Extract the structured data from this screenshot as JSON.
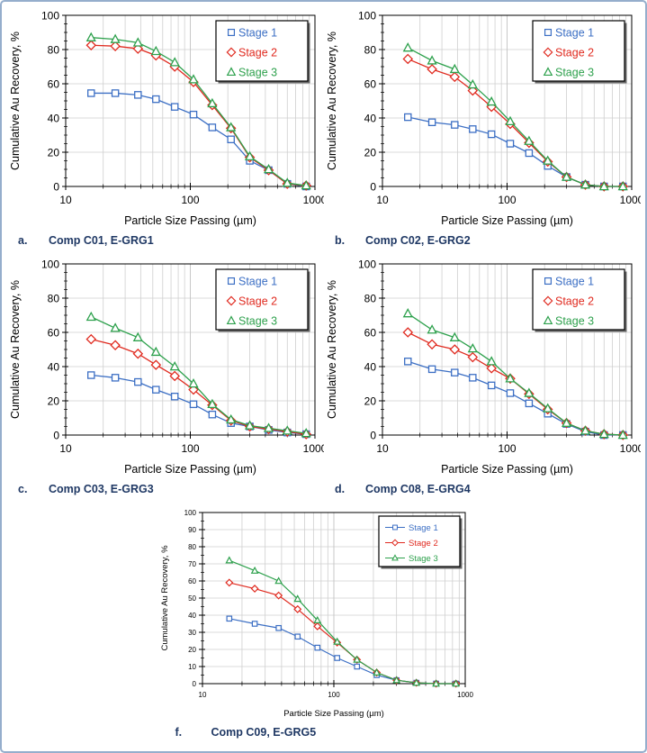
{
  "page": {
    "border_color": "#95AECC",
    "background": "#ffffff"
  },
  "chart_data": [
    {
      "id": "a",
      "caption_letter": "a.",
      "caption_title": "Comp C01, E-GRG1",
      "type": "line",
      "x_scale": "log",
      "xlabel": "Particle Size Passing (µm)",
      "ylabel": "Cumulative Au Recovery, %",
      "xlim": [
        10,
        1000
      ],
      "ylim": [
        0,
        100
      ],
      "x_ticks": [
        10,
        100,
        1000
      ],
      "y_ticks": [
        0,
        20,
        40,
        60,
        80,
        100
      ],
      "y_minor": 5,
      "grid": true,
      "legend_position": "top-right",
      "compact": false,
      "x": [
        16,
        25,
        38,
        53,
        75,
        106,
        150,
        212,
        300,
        425,
        600,
        850
      ],
      "series": [
        {
          "name": "Stage 1",
          "color": "#3C6FC4",
          "marker": "square",
          "values": [
            54.5,
            54.5,
            53.5,
            51,
            46.5,
            42,
            34.5,
            27.5,
            15,
            9.5,
            1.5,
            0
          ]
        },
        {
          "name": "Stage 2",
          "color": "#E02B20",
          "marker": "diamond",
          "values": [
            82.5,
            82,
            80.5,
            76.5,
            70,
            61,
            47.5,
            34,
            17,
            9.5,
            1.5,
            0.5
          ]
        },
        {
          "name": "Stage 3",
          "color": "#2EA14D",
          "marker": "triangle",
          "values": [
            87,
            86,
            84,
            79,
            72.5,
            62.5,
            48.5,
            34.5,
            17.5,
            10,
            2,
            0.5
          ]
        }
      ]
    },
    {
      "id": "b",
      "caption_letter": "b.",
      "caption_title": "Comp C02, E-GRG2",
      "type": "line",
      "x_scale": "log",
      "xlabel": "Particle Size Passing (µm)",
      "ylabel": "Cumulative Au Recovery, %",
      "xlim": [
        10,
        1000
      ],
      "ylim": [
        0,
        100
      ],
      "x_ticks": [
        10,
        100,
        1000
      ],
      "y_ticks": [
        0,
        20,
        40,
        60,
        80,
        100
      ],
      "y_minor": 5,
      "grid": true,
      "legend_position": "top-right",
      "compact": false,
      "x": [
        16,
        25,
        38,
        53,
        75,
        106,
        150,
        212,
        300,
        425,
        600,
        850
      ],
      "series": [
        {
          "name": "Stage 1",
          "color": "#3C6FC4",
          "marker": "square",
          "values": [
            40.5,
            37.5,
            36,
            33.5,
            30.5,
            25,
            19.5,
            12,
            5.5,
            1,
            0,
            0
          ]
        },
        {
          "name": "Stage 2",
          "color": "#E02B20",
          "marker": "diamond",
          "values": [
            74.5,
            68.5,
            64,
            56,
            46.5,
            36.5,
            25.5,
            14.5,
            5.5,
            1,
            0,
            0
          ]
        },
        {
          "name": "Stage 3",
          "color": "#2EA14D",
          "marker": "triangle",
          "values": [
            81,
            73.5,
            68.5,
            59.5,
            49.5,
            38,
            26.5,
            15,
            5.5,
            1,
            0,
            0
          ]
        }
      ]
    },
    {
      "id": "c",
      "caption_letter": "c.",
      "caption_title": "Comp C03, E-GRG3",
      "type": "line",
      "x_scale": "log",
      "xlabel": "Particle Size Passing (µm)",
      "ylabel": "Cumulative Au Recovery, %",
      "xlim": [
        10,
        1000
      ],
      "ylim": [
        0,
        100
      ],
      "x_ticks": [
        10,
        100,
        1000
      ],
      "y_ticks": [
        0,
        20,
        40,
        60,
        80,
        100
      ],
      "y_minor": 5,
      "grid": true,
      "legend_position": "top-right",
      "compact": false,
      "x": [
        16,
        25,
        38,
        53,
        75,
        106,
        150,
        212,
        300,
        425,
        600,
        850
      ],
      "series": [
        {
          "name": "Stage 1",
          "color": "#3C6FC4",
          "marker": "square",
          "values": [
            35,
            33.5,
            31,
            26.5,
            22.5,
            18,
            12,
            7,
            5,
            3,
            1.5,
            0.5
          ]
        },
        {
          "name": "Stage 2",
          "color": "#E02B20",
          "marker": "diamond",
          "values": [
            56,
            52.5,
            47.5,
            41,
            34.5,
            26.5,
            17.5,
            8.5,
            5,
            3.5,
            2,
            0.5
          ]
        },
        {
          "name": "Stage 3",
          "color": "#2EA14D",
          "marker": "triangle",
          "values": [
            69,
            62.5,
            57,
            48.5,
            40,
            30,
            18,
            9,
            5.5,
            4,
            2.5,
            1
          ]
        }
      ]
    },
    {
      "id": "d",
      "caption_letter": "d.",
      "caption_title": "Comp C08, E-GRG4",
      "type": "line",
      "x_scale": "log",
      "xlabel": "Particle Size Passing (µm)",
      "ylabel": "Cumulative Au Recovery, %",
      "xlim": [
        10,
        1000
      ],
      "ylim": [
        0,
        100
      ],
      "x_ticks": [
        10,
        100,
        1000
      ],
      "y_ticks": [
        0,
        20,
        40,
        60,
        80,
        100
      ],
      "y_minor": 5,
      "grid": true,
      "legend_position": "top-right",
      "compact": false,
      "x": [
        16,
        25,
        38,
        53,
        75,
        106,
        150,
        212,
        300,
        425,
        600,
        850
      ],
      "series": [
        {
          "name": "Stage 1",
          "color": "#3C6FC4",
          "marker": "square",
          "values": [
            43,
            38.5,
            36.5,
            33.5,
            29,
            24.5,
            18.5,
            12.5,
            6.5,
            2,
            0,
            0
          ]
        },
        {
          "name": "Stage 2",
          "color": "#E02B20",
          "marker": "diamond",
          "values": [
            60,
            53,
            50,
            45.5,
            39,
            33,
            24,
            15,
            7,
            2.5,
            0.5,
            0
          ]
        },
        {
          "name": "Stage 3",
          "color": "#2EA14D",
          "marker": "triangle",
          "values": [
            71,
            61.5,
            57,
            50.5,
            43,
            33,
            24.5,
            15.5,
            7,
            2.5,
            0.5,
            0
          ]
        }
      ]
    },
    {
      "id": "f",
      "caption_letter": "f.",
      "caption_title": "Comp C09, E-GRG5",
      "type": "line",
      "x_scale": "log",
      "xlabel": "Particle Size Passing (µm)",
      "ylabel": "Cumulative Au Recovery, %",
      "xlim": [
        10,
        1000
      ],
      "ylim": [
        0,
        100
      ],
      "x_ticks": [
        10,
        100,
        1000
      ],
      "y_ticks": [
        0,
        10,
        20,
        30,
        40,
        50,
        60,
        70,
        80,
        90,
        100
      ],
      "y_minor": 5,
      "grid": true,
      "legend_position": "top-right",
      "compact": true,
      "x": [
        16,
        25,
        38,
        53,
        75,
        106,
        150,
        212,
        300,
        425,
        600,
        850
      ],
      "series": [
        {
          "name": "Stage 1",
          "color": "#3C6FC4",
          "marker": "square",
          "values": [
            38,
            35,
            32.5,
            27.5,
            21,
            15,
            10,
            5,
            2,
            0.5,
            0,
            0
          ]
        },
        {
          "name": "Stage 2",
          "color": "#E02B20",
          "marker": "diamond",
          "values": [
            59,
            55.5,
            51.5,
            43.5,
            33.5,
            24,
            14,
            6.5,
            2,
            0.5,
            0,
            0
          ]
        },
        {
          "name": "Stage 3",
          "color": "#2EA14D",
          "marker": "triangle",
          "values": [
            72,
            66,
            60,
            49.5,
            37,
            24.5,
            14,
            6.5,
            2,
            0.5,
            0,
            0
          ]
        }
      ]
    }
  ]
}
